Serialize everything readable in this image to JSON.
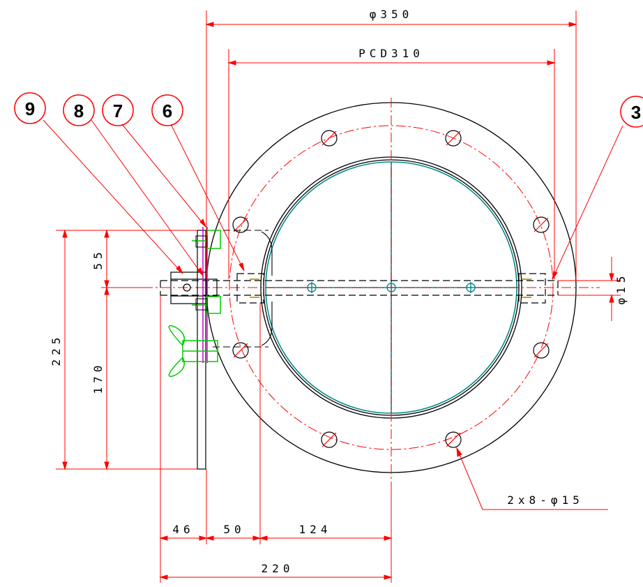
{
  "dimensions": {
    "overall_diameter": "φ350",
    "pcd": "PCD310",
    "shaft_diameter": "φ15",
    "height_225": "225",
    "height_170": "170",
    "height_55": "55",
    "width_46": "46",
    "width_50": "50",
    "width_124": "124",
    "width_220": "220"
  },
  "note": {
    "bolt_holes": "2x8-φ15"
  },
  "balloons": [
    "9",
    "8",
    "7",
    "6",
    "3"
  ],
  "colors": {
    "outline": "#000000",
    "dimension": "#ff0000",
    "center_line": "#ff0000",
    "disc": "#008b8b",
    "fastener": "#00cc00",
    "gasket": "#cc00cc",
    "bushing": "#d4a017"
  }
}
